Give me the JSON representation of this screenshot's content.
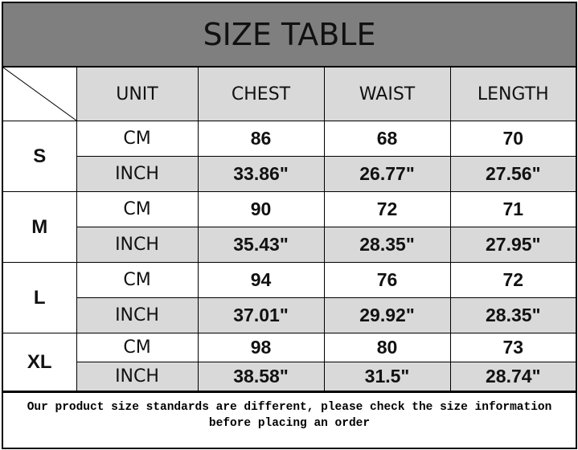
{
  "title": "SIZE TABLE",
  "headers": [
    "UNIT",
    "CHEST",
    "WAIST",
    "LENGTH"
  ],
  "sizes": [
    {
      "size": "S",
      "cm": {
        "unit": "CM",
        "chest": "86",
        "waist": "68",
        "length": "70"
      },
      "inch": {
        "unit": "INCH",
        "chest": "33.86\"",
        "waist": "26.77\"",
        "length": "27.56\""
      }
    },
    {
      "size": "M",
      "cm": {
        "unit": "CM",
        "chest": "90",
        "waist": "72",
        "length": "71"
      },
      "inch": {
        "unit": "INCH",
        "chest": "35.43\"",
        "waist": "28.35\"",
        "length": "27.95\""
      }
    },
    {
      "size": "L",
      "cm": {
        "unit": "CM",
        "chest": "94",
        "waist": "76",
        "length": "72"
      },
      "inch": {
        "unit": "INCH",
        "chest": "37.01\"",
        "waist": "29.92\"",
        "length": "28.35\""
      }
    },
    {
      "size": "XL",
      "cm": {
        "unit": "CM",
        "chest": "98",
        "waist": "80",
        "length": "73"
      },
      "inch": {
        "unit": "INCH",
        "chest": "38.58\"",
        "waist": "31.5\"",
        "length": "28.74\""
      }
    }
  ],
  "note_line1": "Our product size standards are different, please check the size information",
  "note_line2": "before placing an order"
}
